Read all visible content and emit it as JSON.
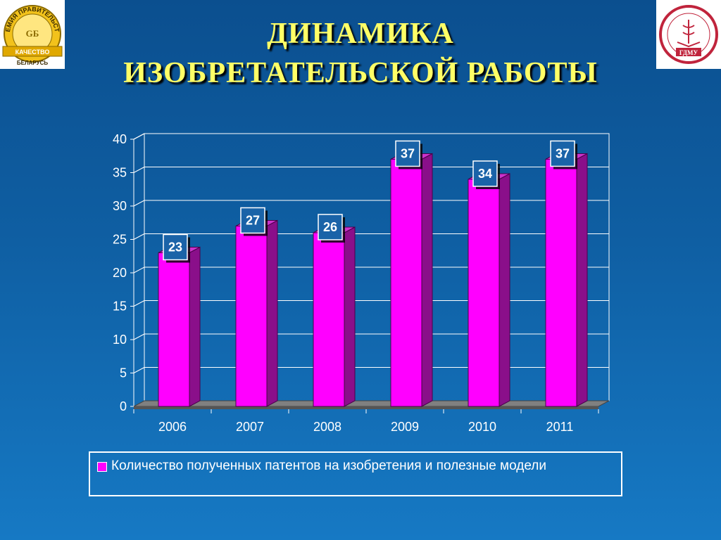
{
  "slide": {
    "title_line1": "ДИНАМИКА",
    "title_line2": "ИЗОБРЕТАТЕЛЬСКОЙ РАБОТЫ",
    "logo_left": {
      "text_top": "ПРЕМИЯ ПРАВИТЕЛЬСТВА",
      "text_band": "КАЧЕСТВО",
      "text_bottom": "БЕЛАРУСЬ",
      "monogram": "GБ"
    },
    "logo_right": {
      "monogram": "ГДМУ"
    }
  },
  "colors": {
    "background": "#0f5fa3",
    "title": "#ffff66",
    "bar_face": "#ff00ff",
    "bar_side": "#8a0f8a",
    "bar_top": "#cc33cc",
    "floor": "#808080",
    "label_box": "#1a63a8"
  },
  "chart_data": {
    "type": "bar",
    "categories": [
      "2006",
      "2007",
      "2008",
      "2009",
      "2010",
      "2011"
    ],
    "series": [
      {
        "name": "Количество полученных патентов на изобретения и полезные модели",
        "values": [
          23,
          27,
          26,
          37,
          34,
          37
        ]
      }
    ],
    "ylim": [
      0,
      40
    ],
    "yticks": [
      0,
      5,
      10,
      15,
      20,
      25,
      30,
      35,
      40
    ],
    "grid": true,
    "legend": "bottom",
    "data_labels": true,
    "three_d": true
  }
}
